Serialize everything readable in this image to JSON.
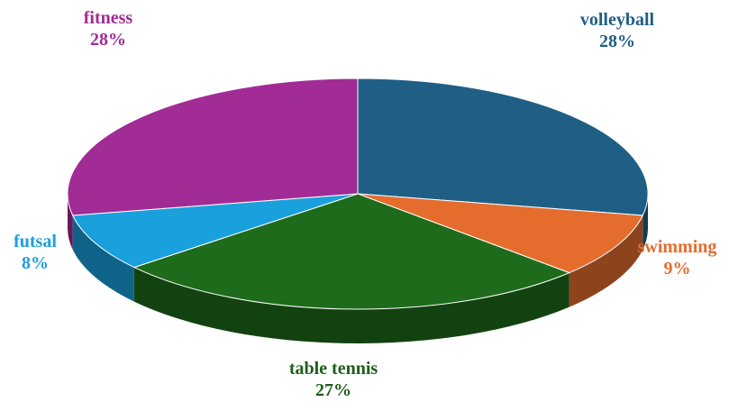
{
  "chart_data": {
    "type": "pie",
    "style": "3d",
    "slices": [
      {
        "label": "volleyball",
        "value": 28,
        "pct_text": "28%",
        "color": "#1f5f86",
        "label_color": "#1f5f86"
      },
      {
        "label": "swimming",
        "value": 9,
        "pct_text": "9%",
        "color": "#e46d2e",
        "label_color": "#e46d2e"
      },
      {
        "label": "table tennis",
        "value": 27,
        "pct_text": "27%",
        "color": "#1e6b1c",
        "label_color": "#1e5e1a"
      },
      {
        "label": "futsal",
        "value": 8,
        "pct_text": "8%",
        "color": "#1aa0dc",
        "label_color": "#1aa0dc"
      },
      {
        "label": "fitness",
        "value": 28,
        "pct_text": "28%",
        "color": "#a12c96",
        "label_color": "#a12c96"
      }
    ]
  }
}
